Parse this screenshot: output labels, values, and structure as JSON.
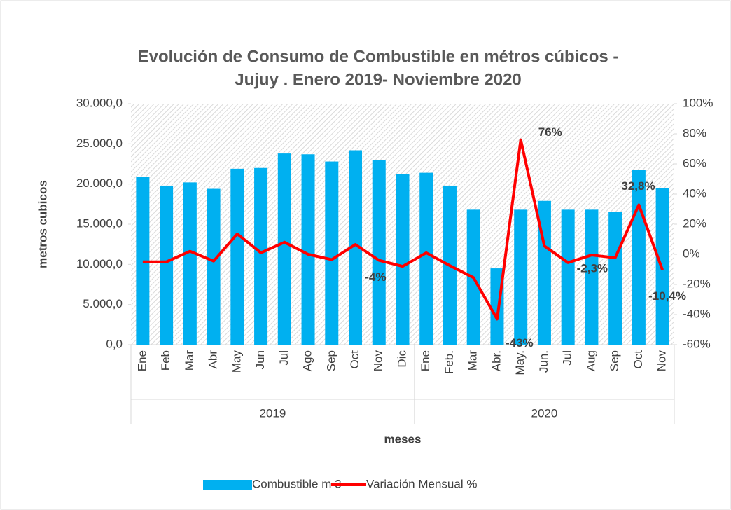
{
  "chart_data": {
    "type": "bar_line",
    "title": [
      "Evolución de Consumo de Combustible en métros cúbicos -",
      "Jujuy . Enero 2019- Noviembre 2020"
    ],
    "y_label": "metros cubicos",
    "x_label": "meses",
    "category_groups": [
      {
        "name": "2019",
        "categories": [
          "Ene",
          "Feb",
          "Mar",
          "Abr",
          "May",
          "Jun",
          "Jul",
          "Ago",
          "Sep",
          "Oct",
          "Nov",
          "Dic"
        ]
      },
      {
        "name": "2020",
        "categories": [
          "Ene",
          "Feb.",
          "Mar",
          "Abr.",
          "May.",
          "Jun.",
          "Jul",
          "Aug",
          "Sep",
          "Oct",
          "Nov"
        ]
      }
    ],
    "ylim": [
      0,
      30000
    ],
    "yticks": [
      {
        "value": 0,
        "label": "0,0"
      },
      {
        "value": 5000,
        "label": "5.000,0"
      },
      {
        "value": 10000,
        "label": "10.000,0"
      },
      {
        "value": 15000,
        "label": "15.000,0"
      },
      {
        "value": 20000,
        "label": "20.000,0"
      },
      {
        "value": 25000,
        "label": "25.000,0"
      },
      {
        "value": 30000,
        "label": "30.000,0"
      }
    ],
    "y2lim": [
      -60,
      100
    ],
    "y2ticks": [
      {
        "value": -60,
        "label": "-60%"
      },
      {
        "value": -40,
        "label": "-40%"
      },
      {
        "value": -20,
        "label": "-20%"
      },
      {
        "value": 0,
        "label": "0%"
      },
      {
        "value": 20,
        "label": "20%"
      },
      {
        "value": 40,
        "label": "40%"
      },
      {
        "value": 60,
        "label": "60%"
      },
      {
        "value": 80,
        "label": "80%"
      },
      {
        "value": 100,
        "label": "100%"
      }
    ],
    "series": [
      {
        "name": "Combustible m 3",
        "type": "bar",
        "color": "#00b0f0",
        "values": [
          20900,
          19800,
          20200,
          19400,
          21900,
          22000,
          23800,
          23700,
          22800,
          24200,
          23000,
          21200,
          21400,
          19800,
          16800,
          9500,
          16800,
          17900,
          16800,
          16800,
          16500,
          21800,
          19500
        ]
      },
      {
        "name": "Variación Mensual %",
        "type": "line",
        "axis": "y2",
        "color": "#ff0000",
        "values": [
          -5,
          -5,
          2,
          -4.5,
          13.5,
          1,
          8,
          0,
          -3.5,
          6.5,
          -4,
          -8,
          1,
          -7.5,
          -15.5,
          -43,
          76,
          5.5,
          -5.5,
          -0.5,
          -2.3,
          32.8,
          -10.4
        ],
        "value_labels": [
          null,
          null,
          null,
          null,
          null,
          null,
          null,
          null,
          null,
          null,
          "-4%",
          null,
          null,
          null,
          null,
          "-43%",
          "76%",
          null,
          null,
          null,
          "-2,3%",
          "32,8%",
          "-10,4%"
        ]
      }
    ]
  }
}
